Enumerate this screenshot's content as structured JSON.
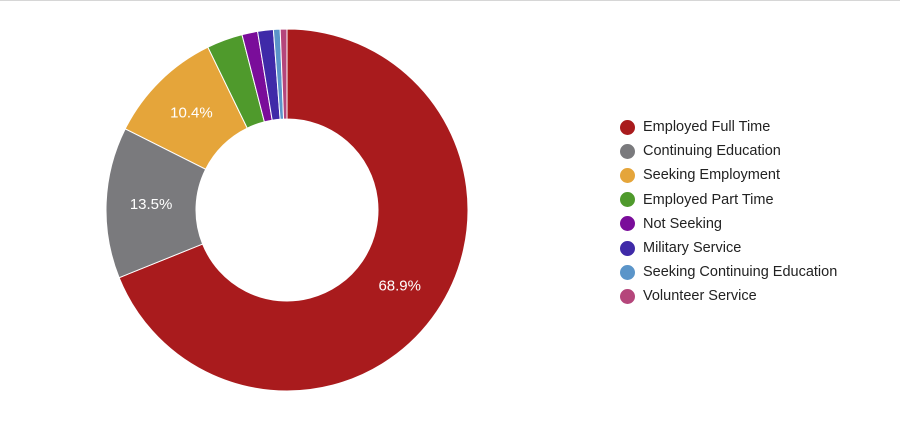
{
  "chart_data": {
    "type": "pie",
    "donut": true,
    "legend_position": "right",
    "slices": [
      {
        "name": "Employed Full Time",
        "value": 68.9,
        "label": "68.9%",
        "color": "#a91b1d"
      },
      {
        "name": "Continuing Education",
        "value": 13.5,
        "label": "13.5%",
        "color": "#7a7a7d"
      },
      {
        "name": "Seeking Employment",
        "value": 10.4,
        "label": "10.4%",
        "color": "#e5a53a"
      },
      {
        "name": "Employed Part Time",
        "value": 3.2,
        "label": "",
        "color": "#4f9a2c"
      },
      {
        "name": "Not Seeking",
        "value": 1.4,
        "label": "",
        "color": "#7a0d9a"
      },
      {
        "name": "Military Service",
        "value": 1.4,
        "label": "",
        "color": "#3f2aa8"
      },
      {
        "name": "Seeking Continuing Education",
        "value": 0.6,
        "label": "",
        "color": "#5b95c9"
      },
      {
        "name": "Volunteer Service",
        "value": 0.6,
        "label": "",
        "color": "#b5467b"
      }
    ]
  }
}
